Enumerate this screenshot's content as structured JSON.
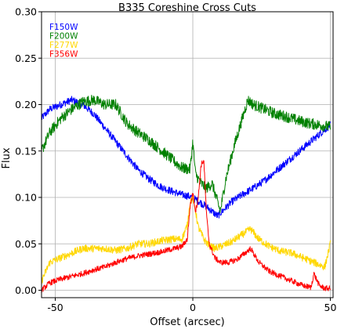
{
  "chart_data": {
    "type": "line",
    "title": "B335 Coreshine Cross Cuts",
    "xlabel": "Offset (arcsec)",
    "ylabel": "Flux",
    "xlim": [
      -55,
      51
    ],
    "ylim": [
      -0.008,
      0.3
    ],
    "xticks": [
      -50,
      0,
      50
    ],
    "xtick_labels": [
      "-50",
      "0",
      "50"
    ],
    "yticks": [
      0.0,
      0.05,
      0.1,
      0.15,
      0.2,
      0.25,
      0.3
    ],
    "ytick_labels": [
      "0.00",
      "0.05",
      "0.10",
      "0.15",
      "0.20",
      "0.25",
      "0.30"
    ],
    "grid": true,
    "legend_position": "top-left",
    "series": [
      {
        "name": "F150W",
        "color": "#0000ff",
        "x": [
          -55,
          -52,
          -48,
          -44,
          -40,
          -36,
          -32,
          -28,
          -24,
          -20,
          -16,
          -12,
          -8,
          -4,
          -1,
          0,
          1,
          3,
          5,
          7,
          9,
          11,
          14,
          18,
          22,
          26,
          30,
          34,
          38,
          42,
          46,
          50
        ],
        "y": [
          0.185,
          0.195,
          0.2,
          0.205,
          0.2,
          0.19,
          0.175,
          0.16,
          0.145,
          0.13,
          0.12,
          0.112,
          0.107,
          0.103,
          0.101,
          0.099,
          0.098,
          0.094,
          0.09,
          0.085,
          0.08,
          0.086,
          0.095,
          0.103,
          0.11,
          0.118,
          0.128,
          0.138,
          0.148,
          0.158,
          0.168,
          0.178
        ]
      },
      {
        "name": "F200W",
        "color": "#008000",
        "x": [
          -55,
          -52,
          -48,
          -44,
          -40,
          -36,
          -32,
          -28,
          -24,
          -20,
          -16,
          -12,
          -8,
          -4,
          -1,
          0,
          1,
          3,
          5,
          7,
          9,
          10,
          12,
          15,
          18,
          20,
          22,
          26,
          30,
          34,
          38,
          42,
          46,
          50
        ],
        "y": [
          0.15,
          0.17,
          0.185,
          0.195,
          0.203,
          0.205,
          0.2,
          0.2,
          0.18,
          0.17,
          0.162,
          0.152,
          0.142,
          0.132,
          0.13,
          0.16,
          0.125,
          0.115,
          0.11,
          0.115,
          0.095,
          0.085,
          0.12,
          0.155,
          0.185,
          0.205,
          0.2,
          0.195,
          0.19,
          0.187,
          0.183,
          0.18,
          0.178,
          0.176
        ]
      },
      {
        "name": "F277W",
        "color": "#ffd700",
        "x": [
          -55,
          -52,
          -48,
          -44,
          -40,
          -36,
          -32,
          -28,
          -24,
          -20,
          -16,
          -12,
          -8,
          -4,
          -2,
          -1,
          0,
          1,
          2,
          4,
          6,
          8,
          10,
          14,
          18,
          21,
          24,
          28,
          32,
          36,
          40,
          44,
          48,
          50
        ],
        "y": [
          0.01,
          0.03,
          0.035,
          0.04,
          0.045,
          0.045,
          0.045,
          0.043,
          0.045,
          0.05,
          0.05,
          0.053,
          0.055,
          0.055,
          0.07,
          0.095,
          0.1,
          0.085,
          0.068,
          0.055,
          0.048,
          0.045,
          0.047,
          0.052,
          0.06,
          0.066,
          0.055,
          0.047,
          0.042,
          0.04,
          0.035,
          0.03,
          0.025,
          0.05
        ]
      },
      {
        "name": "F356W",
        "color": "#ff0000",
        "x": [
          -55,
          -52,
          -48,
          -44,
          -40,
          -36,
          -32,
          -28,
          -24,
          -20,
          -16,
          -12,
          -8,
          -4,
          -2,
          -1,
          0,
          1,
          2,
          3,
          4,
          5,
          6,
          8,
          10,
          13,
          16,
          19,
          21,
          24,
          28,
          32,
          36,
          40,
          43,
          44,
          46,
          48,
          50
        ],
        "y": [
          0.0,
          0.008,
          0.012,
          0.015,
          0.018,
          0.022,
          0.025,
          0.03,
          0.034,
          0.037,
          0.039,
          0.041,
          0.044,
          0.047,
          0.055,
          0.09,
          0.105,
          0.085,
          0.1,
          0.135,
          0.14,
          0.08,
          0.05,
          0.035,
          0.03,
          0.03,
          0.033,
          0.04,
          0.045,
          0.03,
          0.02,
          0.015,
          0.01,
          0.005,
          0.003,
          0.018,
          0.005,
          0.002,
          0.002
        ]
      }
    ]
  }
}
